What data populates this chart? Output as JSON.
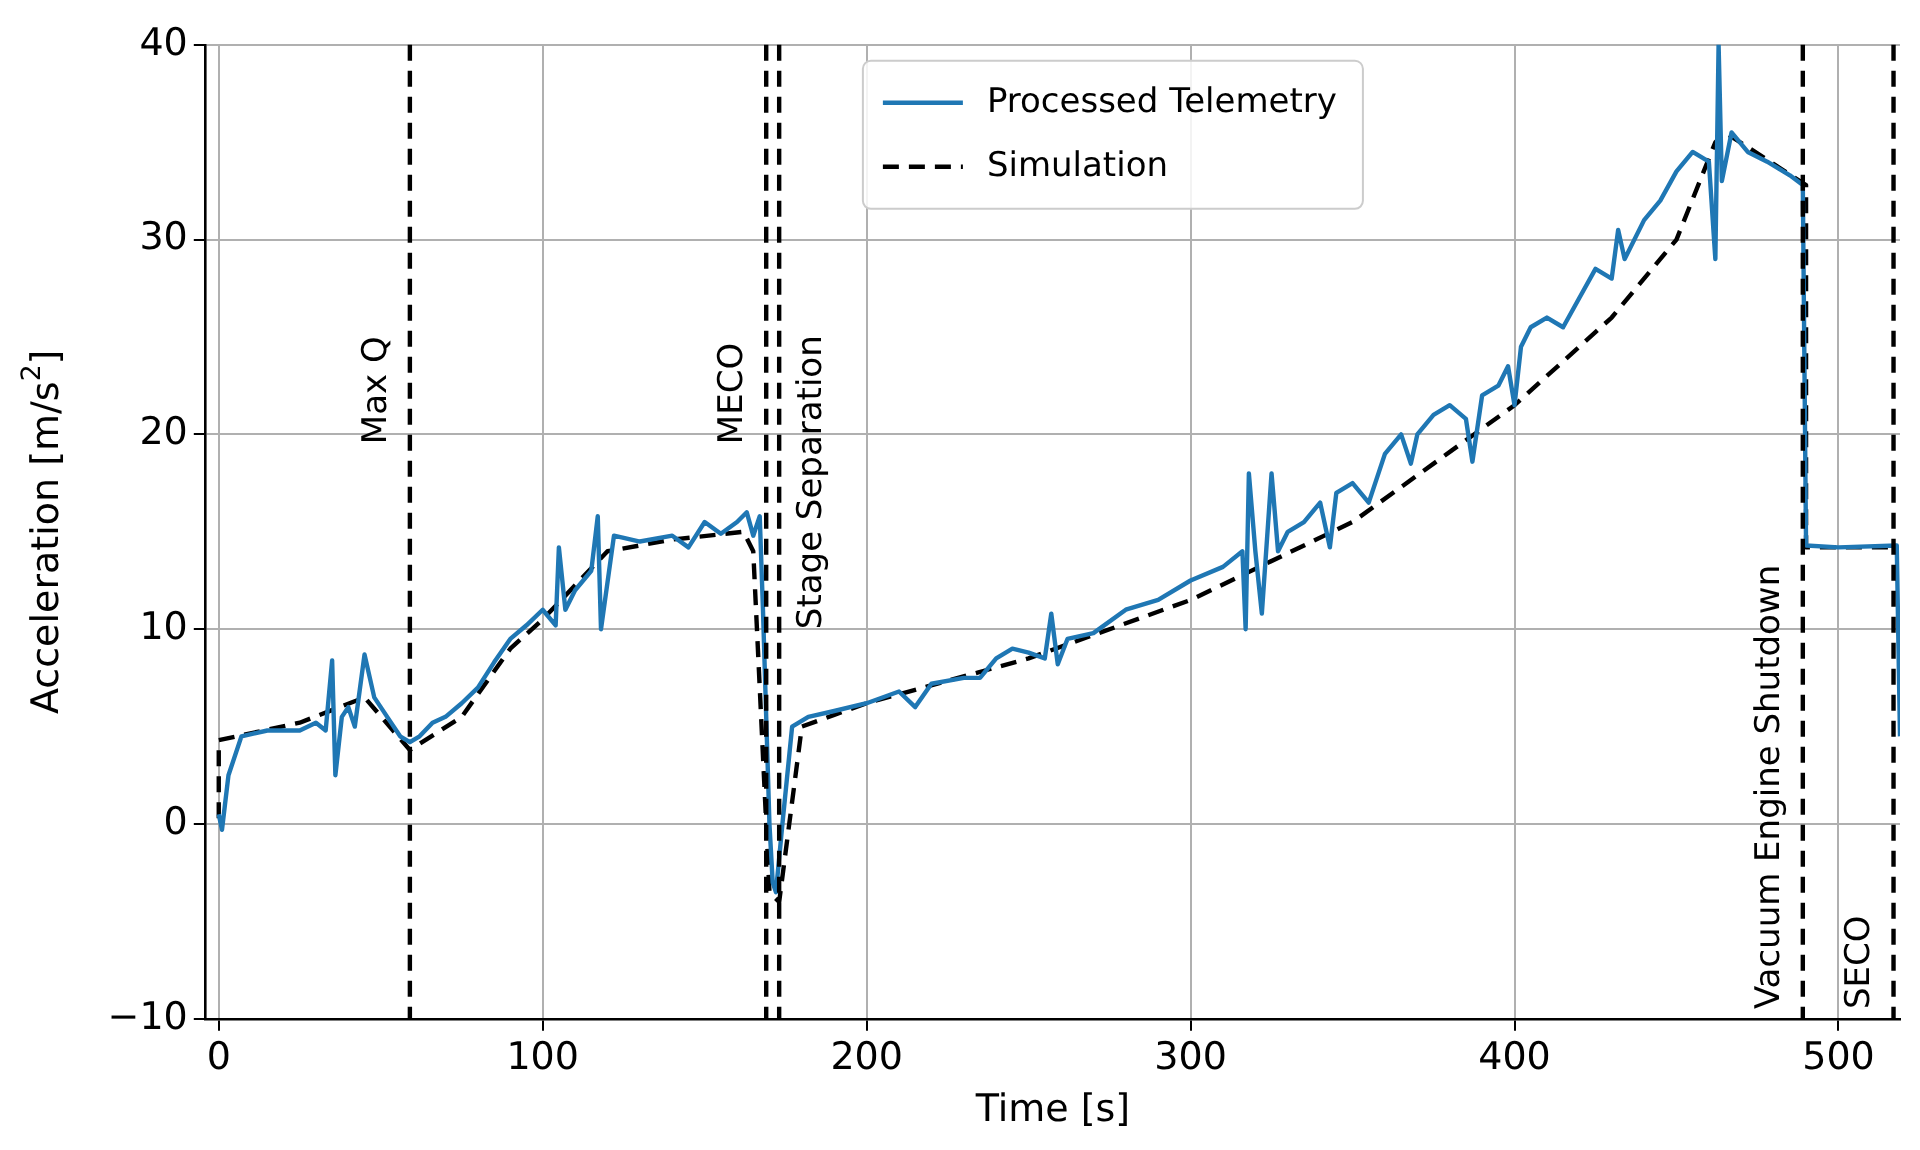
{
  "chart_data": {
    "type": "line",
    "xlabel": "Time [s]",
    "ylabel": "Acceleration [m/s$^{2}$]",
    "xlim": [
      -4,
      519
    ],
    "ylim": [
      -10,
      40
    ],
    "xticks": [
      0,
      100,
      200,
      300,
      400,
      500
    ],
    "yticks": [
      -10,
      0,
      10,
      20,
      30,
      40
    ],
    "grid": true,
    "legend": "top",
    "marker": "none",
    "series": [
      {
        "name": "Processed Telemetry",
        "color": "#1f77b4",
        "line_style": "solid",
        "x": [
          0,
          1,
          3,
          7,
          15,
          25,
          30,
          33,
          35,
          36,
          38,
          40,
          42,
          45,
          48,
          52,
          56,
          59,
          62,
          66,
          70,
          75,
          80,
          85,
          90,
          95,
          100,
          104,
          105,
          107,
          110,
          115,
          117,
          118,
          122,
          130,
          140,
          145,
          150,
          155,
          160,
          163,
          165,
          167,
          168,
          170,
          171,
          172,
          174,
          177,
          182,
          190,
          200,
          210,
          215,
          220,
          230,
          235,
          240,
          245,
          250,
          255,
          257,
          259,
          262,
          270,
          280,
          290,
          300,
          310,
          316,
          317,
          318,
          320,
          322,
          325,
          327,
          330,
          335,
          340,
          343,
          345,
          350,
          355,
          360,
          365,
          368,
          370,
          375,
          380,
          385,
          387,
          390,
          395,
          398,
          400,
          402,
          405,
          410,
          415,
          420,
          425,
          430,
          432,
          434,
          440,
          445,
          450,
          455,
          460,
          462,
          463,
          464,
          467,
          472,
          478,
          485,
          489,
          490,
          500,
          518,
          519
        ],
        "values": [
          0.5,
          -0.3,
          2.5,
          4.5,
          4.8,
          4.8,
          5.2,
          4.8,
          8.4,
          2.5,
          5.5,
          6,
          5,
          8.7,
          6.5,
          5.5,
          4.5,
          4.2,
          4.5,
          5.2,
          5.5,
          6.2,
          7,
          8.3,
          9.5,
          10.2,
          11,
          10.2,
          14.2,
          11,
          12,
          13,
          15.8,
          10,
          14.8,
          14.5,
          14.8,
          14.2,
          15.5,
          14.9,
          15.5,
          16,
          14.8,
          15.8,
          11,
          0,
          -3,
          -3.5,
          0,
          5,
          5.5,
          5.8,
          6.2,
          6.8,
          6,
          7.2,
          7.5,
          7.5,
          8.5,
          9,
          8.8,
          8.5,
          10.8,
          8.2,
          9.5,
          9.8,
          11,
          11.5,
          12.5,
          13.2,
          14,
          10,
          18,
          14,
          10.8,
          18,
          14,
          15,
          15.5,
          16.5,
          14.2,
          17,
          17.5,
          16.5,
          19,
          20,
          18.5,
          20,
          21,
          21.5,
          20.8,
          18.6,
          22,
          22.5,
          23.5,
          21.5,
          24.5,
          25.5,
          26,
          25.5,
          27,
          28.5,
          28,
          30.5,
          29,
          31,
          32,
          33.5,
          34.5,
          34,
          29,
          40,
          33,
          35.5,
          34.5,
          34,
          33.3,
          32.8,
          14.3,
          14.2,
          14.3,
          4.5
        ]
      },
      {
        "name": "Simulation",
        "color": "#000000",
        "line_style": "dashed",
        "x": [
          0,
          0,
          25,
          45,
          59,
          75,
          90,
          100,
          120,
          140,
          162,
          165,
          170,
          173,
          180,
          190,
          200,
          250,
          300,
          350,
          400,
          430,
          450,
          462,
          465,
          490,
          490,
          517
        ],
        "values": [
          0.3,
          4.3,
          5.2,
          6.5,
          3.8,
          5.5,
          9,
          10.5,
          14,
          14.6,
          15,
          14,
          -3.5,
          -4,
          5,
          5.6,
          6.2,
          8.5,
          11.5,
          15.5,
          21.5,
          26,
          30,
          35,
          35.5,
          32.8,
          14.2,
          14.2
        ]
      }
    ],
    "ref_lines": [
      {
        "axis": "x",
        "value": 59,
        "label": "Max Q",
        "color": "#000000",
        "line_style": "dashed"
      },
      {
        "axis": "x",
        "value": 169,
        "label": "MECO",
        "color": "#000000",
        "line_style": "dashed"
      },
      {
        "axis": "x",
        "value": 173,
        "label": "Stage Separation",
        "color": "#000000",
        "line_style": "dashed"
      },
      {
        "axis": "x",
        "value": 489,
        "label": "Vacuum Engine Shutdown",
        "color": "#000000",
        "line_style": "dashed"
      },
      {
        "axis": "x",
        "value": 517,
        "label": "SECO",
        "color": "#000000",
        "line_style": "dashed"
      }
    ]
  }
}
